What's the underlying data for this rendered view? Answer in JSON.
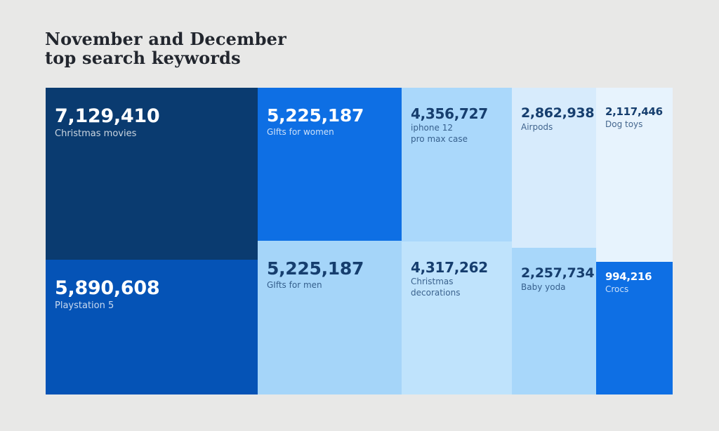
{
  "title": {
    "text": "November and December\ntop search keywords"
  },
  "chart_data": {
    "type": "treemap",
    "title": "November and December top search keywords",
    "legend": "none",
    "items": [
      {
        "label": "Christmas movies",
        "value": 7129410,
        "value_text": "7,129,410",
        "color": "#0a3b70",
        "text_color": "#ffffff"
      },
      {
        "label": "Playstation 5",
        "value": 5890608,
        "value_text": "5,890,608",
        "color": "#0553b6",
        "text_color": "#ffffff"
      },
      {
        "label": "GIfts for women",
        "value": 5225187,
        "value_text": "5,225,187",
        "color": "#0e6fe4",
        "text_color": "#ffffff"
      },
      {
        "label": "GIfts for men",
        "value": 5225187,
        "value_text": "5,225,187",
        "color": "#a5d5f9",
        "text_color": "#163e6e"
      },
      {
        "label": "iphone 12\npro max case",
        "value": 4356727,
        "value_text": "4,356,727",
        "color": "#aad8fb",
        "text_color": "#163e6e"
      },
      {
        "label": "Christmas\ndecorations",
        "value": 4317262,
        "value_text": "4,317,262",
        "color": "#bfe3fc",
        "text_color": "#163e6e"
      },
      {
        "label": "Airpods",
        "value": 2862938,
        "value_text": "2,862,938",
        "color": "#d7ebfc",
        "text_color": "#163e6e"
      },
      {
        "label": "Baby yoda",
        "value": 2257734,
        "value_text": "2,257,734",
        "color": "#a8d7fa",
        "text_color": "#163e6e"
      },
      {
        "label": "Dog toys",
        "value": 2117446,
        "value_text": "2,117,446",
        "color": "#e7f3fd",
        "text_color": "#163e6e"
      },
      {
        "label": "Crocs",
        "value": 994216,
        "value_text": "994,216",
        "color": "#0e6fe4",
        "text_color": "#ffffff"
      }
    ],
    "colors": {
      "background": "#e8e8e7",
      "title_text": "#22262e"
    }
  }
}
